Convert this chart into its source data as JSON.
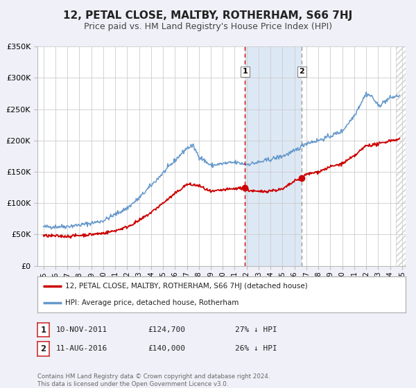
{
  "title": "12, PETAL CLOSE, MALTBY, ROTHERHAM, S66 7HJ",
  "subtitle": "Price paid vs. HM Land Registry's House Price Index (HPI)",
  "ylim": [
    0,
    350000
  ],
  "yticks": [
    0,
    50000,
    100000,
    150000,
    200000,
    250000,
    300000,
    350000
  ],
  "ytick_labels": [
    "£0",
    "£50K",
    "£100K",
    "£150K",
    "£200K",
    "£250K",
    "£300K",
    "£350K"
  ],
  "xlim_start": 1994.5,
  "xlim_end": 2025.3,
  "bg_color": "#f0f0f8",
  "plot_bg_color": "#ffffff",
  "grid_color": "#cccccc",
  "red_line_color": "#cc0000",
  "blue_line_color": "#6699cc",
  "marker1_date": 2011.87,
  "marker1_value": 124700,
  "marker2_date": 2016.62,
  "marker2_value": 140000,
  "vline1_color": "#cc0000",
  "vline2_color": "#999999",
  "shade_color": "#dde8f5",
  "hatch_start": 2024.5,
  "legend_label_red": "12, PETAL CLOSE, MALTBY, ROTHERHAM, S66 7HJ (detached house)",
  "legend_label_blue": "HPI: Average price, detached house, Rotherham",
  "table_row1": [
    "1",
    "10-NOV-2011",
    "£124,700",
    "27% ↓ HPI"
  ],
  "table_row2": [
    "2",
    "11-AUG-2016",
    "£140,000",
    "26% ↓ HPI"
  ],
  "footer_text": "Contains HM Land Registry data © Crown copyright and database right 2024.\nThis data is licensed under the Open Government Licence v3.0.",
  "title_fontsize": 11,
  "subtitle_fontsize": 9
}
